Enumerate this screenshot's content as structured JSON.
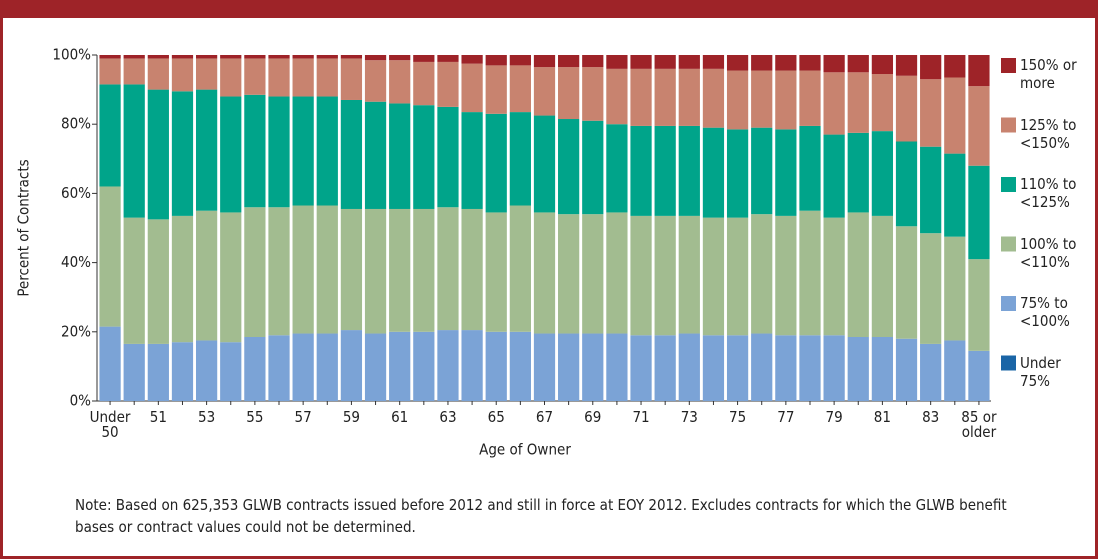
{
  "chart_data": {
    "type": "stacked_bar",
    "ylabel": "Percent of Contracts",
    "xlabel": "Age of Owner",
    "note": "Note: Based on 625,353 GLWB contracts issued before 2012 and still in force at EOY 2012. Excludes contracts for which the GLWB benefit bases or contract values could not be determined.",
    "categories": [
      "Under 50",
      null,
      "51",
      null,
      "53",
      null,
      "55",
      null,
      "57",
      null,
      "59",
      null,
      "61",
      null,
      "63",
      null,
      "65",
      null,
      "67",
      null,
      "69",
      null,
      "71",
      null,
      "73",
      null,
      "75",
      null,
      "77",
      null,
      "79",
      null,
      "81",
      null,
      "83",
      null,
      "85 or older"
    ],
    "ylim": [
      0,
      100
    ],
    "yticks": [
      {
        "value": 0,
        "label": "0%"
      },
      {
        "value": 20,
        "label": "20%"
      },
      {
        "value": 40,
        "label": "40%"
      },
      {
        "value": 60,
        "label": "60%"
      },
      {
        "value": 80,
        "label": "80%"
      },
      {
        "value": 100,
        "label": "100%"
      }
    ],
    "series": [
      {
        "name": "Under 75%",
        "color": "#1a65a6",
        "values": [
          0,
          0,
          0,
          0,
          0,
          0,
          0,
          0,
          0,
          0,
          0,
          0,
          0,
          0,
          0,
          0,
          0,
          0,
          0,
          0,
          0,
          0,
          0,
          0,
          0,
          0,
          0,
          0,
          0,
          0,
          0,
          0,
          0,
          0,
          0,
          0,
          0
        ]
      },
      {
        "name": "75% to <100%",
        "color": "#7ba3d6",
        "values": [
          21.5,
          16.5,
          16.5,
          17,
          17.5,
          17,
          18.5,
          19,
          19.5,
          19.5,
          20.5,
          19.5,
          20,
          20,
          20.5,
          20.5,
          20,
          20,
          19.5,
          19.5,
          19.5,
          19.5,
          19,
          19,
          19.5,
          19,
          19,
          19.5,
          19,
          19,
          19,
          18.5,
          18.5,
          18,
          16.5,
          17.5,
          14.5
        ]
      },
      {
        "name": "100% to <110%",
        "color": "#a2bc90",
        "values": [
          40.5,
          36.5,
          36,
          36.5,
          37.5,
          37.5,
          37.5,
          37,
          37,
          37,
          35,
          36,
          35.5,
          35.5,
          35.5,
          35,
          34.5,
          36.5,
          35,
          34.5,
          34.5,
          35,
          34.5,
          34.5,
          34,
          34,
          34,
          34.5,
          34.5,
          36,
          34,
          36,
          35,
          32.5,
          32,
          30,
          26.5
        ]
      },
      {
        "name": "110% to <125%",
        "color": "#00a48a",
        "values": [
          29.5,
          38.5,
          37.5,
          36,
          35,
          33.5,
          32.5,
          32,
          31.5,
          31.5,
          31.5,
          31,
          30.5,
          30,
          29,
          28,
          28.5,
          27,
          28,
          27.5,
          27,
          25.5,
          26,
          26,
          26,
          26,
          25.5,
          25,
          25,
          24.5,
          24,
          23,
          24.5,
          24.5,
          25,
          24,
          27
        ]
      },
      {
        "name": "125% to <150%",
        "color": "#c8836f",
        "values": [
          7.5,
          7.5,
          9,
          9.5,
          9,
          11,
          10.5,
          11,
          11,
          11,
          12,
          12,
          12.5,
          12.5,
          13,
          14,
          14,
          13.5,
          14,
          15,
          15.5,
          16,
          16.5,
          16.5,
          16.5,
          17,
          17,
          16.5,
          17,
          16,
          18,
          17.5,
          16.5,
          19,
          19.5,
          22,
          23
        ]
      },
      {
        "name": "150% or more",
        "color": "#9e2328",
        "values": [
          1,
          1,
          1,
          1,
          1,
          1,
          1,
          1,
          1,
          1,
          1,
          1.5,
          1.5,
          2,
          2,
          2.5,
          3,
          3,
          3.5,
          3.5,
          3.5,
          4,
          4,
          4,
          4,
          4,
          4.5,
          4.5,
          4.5,
          4.5,
          5,
          5,
          5.5,
          6,
          7,
          6.5,
          9
        ]
      }
    ]
  }
}
